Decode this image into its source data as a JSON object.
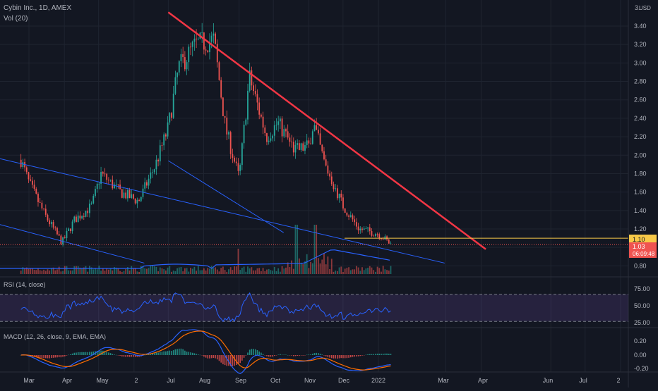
{
  "colors": {
    "background": "#131722",
    "grid": "#1f2430",
    "separator": "#2a2e39",
    "axis_text": "#b2b5be",
    "up": "#26a69a",
    "down": "#ef5350",
    "trend_red": "#f23645",
    "channel_blue": "#2962ff",
    "volume_ma": "#2962ff",
    "price_line": "#f7c948",
    "rsi_line": "#2962ff",
    "rsi_band": "#7e57c2",
    "rsi_level": "#787b86",
    "macd_line": "#2962ff",
    "signal_line": "#ff6d00"
  },
  "header": {
    "symbol_line": "Cybin Inc., 1D, AMEX",
    "volume_label": "Vol (20)",
    "currency": "USD"
  },
  "price_panel": {
    "y_ticks": [
      "3.40",
      "3.20",
      "3.00",
      "2.80",
      "2.60",
      "2.40",
      "2.20",
      "2.00",
      "1.80",
      "1.60",
      "1.40",
      "1.20",
      "0.80"
    ],
    "top_partial_tick": "3.",
    "price_label": "1.10",
    "last_price_label": "1.03",
    "countdown": "06:09:48"
  },
  "rsi_panel": {
    "label": "RSI (14, close)",
    "ticks": [
      "75.00",
      "50.00",
      "25.00"
    ]
  },
  "macd_panel": {
    "label": "MACD (12, 26, close, 9, EMA, EMA)",
    "ticks": [
      "0.20",
      "0.00",
      "-0.20"
    ]
  },
  "x_axis": {
    "labels": [
      "Mar",
      "Apr",
      "May",
      "2",
      "Jul",
      "Aug",
      "Sep",
      "Oct",
      "Nov",
      "Dec",
      "2022",
      "Mar",
      "Apr",
      "Jun",
      "Jul",
      "2"
    ]
  },
  "chart_data": {
    "type": "line",
    "interval": "1D",
    "price_close_path": [
      {
        "t": "2021-02-22",
        "v": 1.95
      },
      {
        "t": "2021-03-01",
        "v": 1.7
      },
      {
        "t": "2021-03-15",
        "v": 1.35
      },
      {
        "t": "2021-03-30",
        "v": 1.05
      },
      {
        "t": "2021-04-10",
        "v": 1.3
      },
      {
        "t": "2021-04-25",
        "v": 1.45
      },
      {
        "t": "2021-05-03",
        "v": 1.8
      },
      {
        "t": "2021-05-20",
        "v": 1.6
      },
      {
        "t": "2021-06-05",
        "v": 1.5
      },
      {
        "t": "2021-06-20",
        "v": 1.9
      },
      {
        "t": "2021-07-01",
        "v": 2.3
      },
      {
        "t": "2021-07-10",
        "v": 2.95
      },
      {
        "t": "2021-07-25",
        "v": 3.2
      },
      {
        "t": "2021-08-10",
        "v": 3.25
      },
      {
        "t": "2021-08-20",
        "v": 2.3
      },
      {
        "t": "2021-09-01",
        "v": 1.75
      },
      {
        "t": "2021-09-10",
        "v": 2.85
      },
      {
        "t": "2021-09-25",
        "v": 2.2
      },
      {
        "t": "2021-10-05",
        "v": 2.35
      },
      {
        "t": "2021-10-20",
        "v": 2.05
      },
      {
        "t": "2021-11-01",
        "v": 2.1
      },
      {
        "t": "2021-11-05",
        "v": 2.35
      },
      {
        "t": "2021-11-15",
        "v": 1.9
      },
      {
        "t": "2021-12-01",
        "v": 1.45
      },
      {
        "t": "2021-12-15",
        "v": 1.2
      },
      {
        "t": "2022-01-01",
        "v": 1.15
      },
      {
        "t": "2022-01-12",
        "v": 1.03
      }
    ],
    "trendlines": [
      {
        "name": "descending resistance",
        "from": {
          "t": "2021-07-01",
          "v": 3.55
        },
        "to": {
          "t": "2022-04-05",
          "v": 0.98
        }
      },
      {
        "name": "channel upper",
        "from": {
          "t": "2021-01-25",
          "v": 1.99
        },
        "to": {
          "t": "2022-02-28",
          "v": 0.83
        }
      },
      {
        "name": "channel lower",
        "from": {
          "t": "2021-01-25",
          "v": 1.28
        },
        "to": {
          "t": "2021-06-10",
          "v": 0.83
        }
      },
      {
        "name": "channel mid",
        "from": {
          "t": "2021-07-01",
          "v": 1.94
        },
        "to": {
          "t": "2021-10-10",
          "v": 1.16
        }
      }
    ],
    "horizontal_line": {
      "v": 1.1
    },
    "rsi_levels": [
      70,
      30
    ],
    "ylim": [
      0.75,
      3.5
    ]
  }
}
